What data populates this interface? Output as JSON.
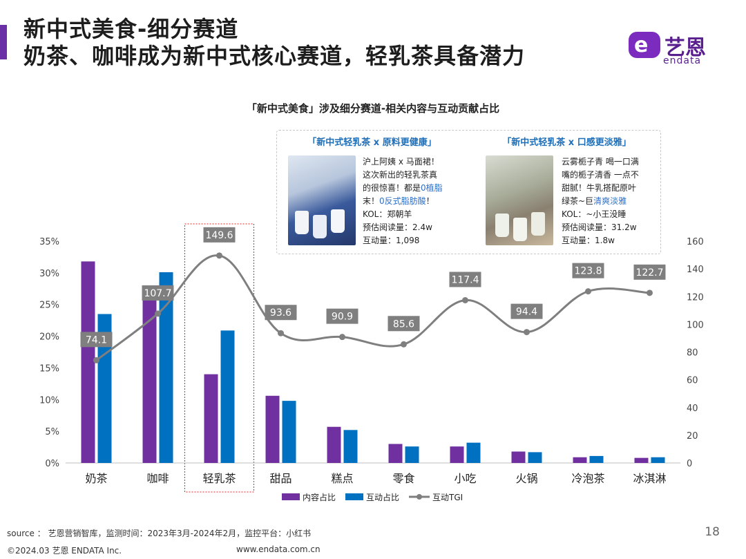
{
  "header": {
    "title_line1": "新中式美食-细分赛道",
    "title_line2": "奶茶、咖啡成为新中式核心赛道，轻乳茶具备潜力"
  },
  "logo": {
    "mark": "e",
    "name_cn": "艺恩",
    "name_en": "endata"
  },
  "callouts": [
    {
      "title": "「新中式轻乳茶 x 原料更健康」",
      "lines": [
        "沪上阿姨 x 马面裙！",
        "这次新出的轻乳茶真",
        "的很惊喜！都是",
        "末！",
        "KOL：郑朝羊",
        "预估阅读量：2.4w",
        "互动量：1,098"
      ],
      "highlights": [
        "0植脂",
        "0反式脂肪酸"
      ],
      "trailing": "！"
    },
    {
      "title": "「新中式轻乳茶 x 口感更淡雅」",
      "lines": [
        "云雾栀子青 喝一口满",
        "嘴的栀子清香 一点不",
        "甜腻！牛乳搭配原叶",
        "绿茶~巨",
        "KOL：~小王没睡",
        "预估阅读量：31.2w",
        "互动量：1.8w"
      ],
      "highlights": [
        "清爽淡雅"
      ]
    }
  ],
  "chart_data": {
    "type": "bar",
    "title": "「新中式美食」涉及细分赛道-相关内容与互动贡献占比",
    "categories": [
      "奶茶",
      "咖啡",
      "轻乳茶",
      "甜品",
      "糕点",
      "零食",
      "小吃",
      "火锅",
      "冷泡茶",
      "冰淇淋"
    ],
    "series": [
      {
        "name": "内容占比",
        "type": "bar",
        "axis": "left",
        "color": "#7030a0",
        "values": [
          31.8,
          27.9,
          14.0,
          10.6,
          5.7,
          3.0,
          2.6,
          1.8,
          0.9,
          0.8
        ]
      },
      {
        "name": "互动占比",
        "type": "bar",
        "axis": "left",
        "color": "#0070c0",
        "values": [
          23.5,
          30.1,
          20.9,
          9.8,
          5.2,
          2.6,
          3.2,
          1.7,
          1.1,
          0.9
        ]
      },
      {
        "name": "互动TGI",
        "type": "line",
        "axis": "right",
        "color": "#7f7f7f",
        "values": [
          74.1,
          107.7,
          149.6,
          93.6,
          90.9,
          85.6,
          117.4,
          94.4,
          123.8,
          122.7
        ]
      }
    ],
    "y_left": {
      "min": 0,
      "max": 35,
      "step": 5,
      "unit": "%"
    },
    "y_right": {
      "min": 0,
      "max": 160,
      "step": 20
    },
    "grid": false,
    "highlight_category": "轻乳茶",
    "legend_position": "bottom"
  },
  "footer": {
    "source": "source ： 艺恩营销智库，监测时间：2023年3月-2024年2月，监控平台：小红书",
    "page": "18",
    "copyright": "©2024.03  艺恩 ENDATA Inc.",
    "url": "www.endata.com.cn"
  }
}
